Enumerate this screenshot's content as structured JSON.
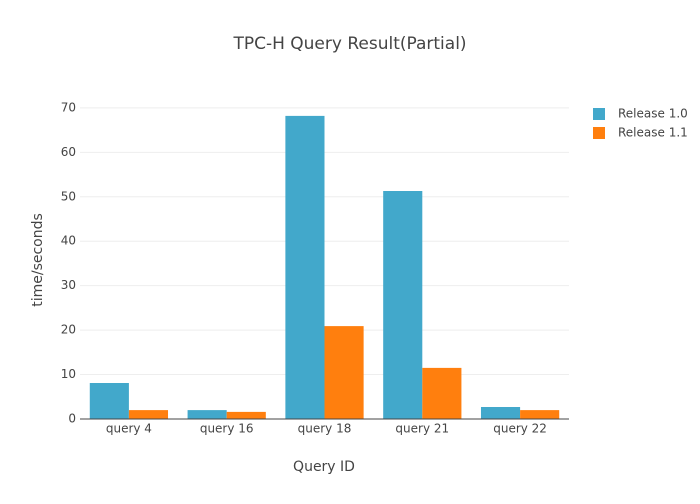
{
  "chart_data": {
    "type": "bar",
    "title": "TPC-H Query Result(Partial)",
    "x_label": "Query ID",
    "y_label": "time/seconds",
    "categories": [
      "query 4",
      "query 16",
      "query 18",
      "query 21",
      "query 22"
    ],
    "series": [
      {
        "name": "Release 1.0",
        "color": "#42a8cb",
        "values": [
          8.1,
          2.0,
          68.2,
          51.3,
          2.7
        ]
      },
      {
        "name": "Release 1.1",
        "color": "#ff7f0e",
        "values": [
          2.0,
          1.6,
          20.9,
          11.5,
          2.0
        ]
      }
    ],
    "ylim": [
      0,
      72
    ],
    "yticks": [
      0,
      10,
      20,
      30,
      40,
      50,
      60,
      70
    ],
    "grid": true,
    "legend": "top-right"
  }
}
